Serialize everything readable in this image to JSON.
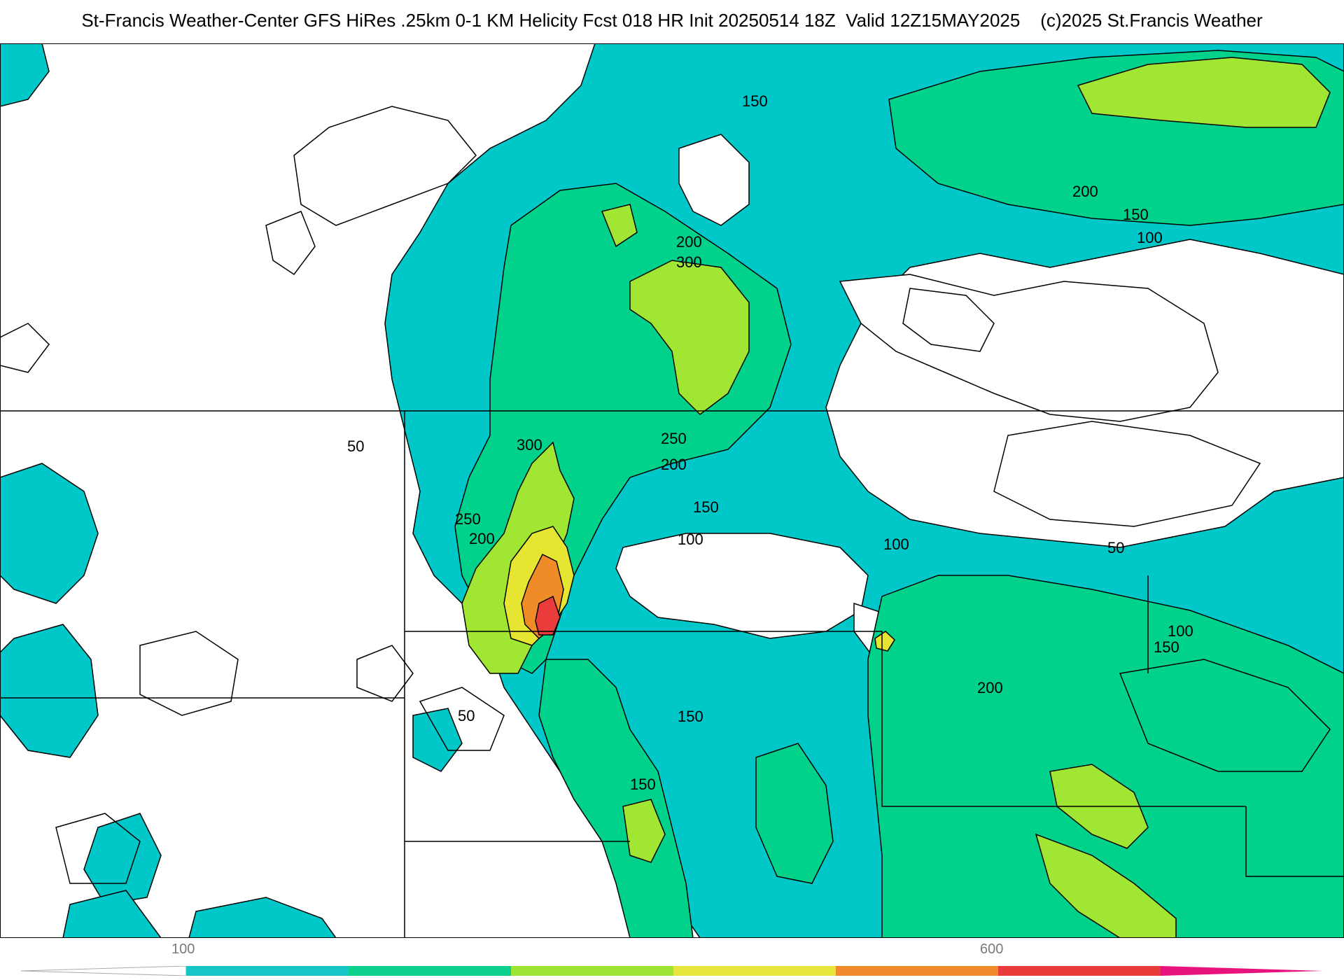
{
  "header": {
    "title": "St-Francis Weather-Center GFS HiRes .25km 0-1 KM Helicity Fcst 018 HR Init 20250514 18Z  Valid 12Z15MAY2025    (c)2025 St.Francis Weather"
  },
  "contour_labels": {
    "l150_top": "150",
    "l200_ne": "200",
    "l150_ne": "150",
    "l100_ne": "100",
    "l200_a": "200",
    "l300_a": "300",
    "l50_w": "50",
    "l250_a": "250",
    "l300_b": "300",
    "l200_b": "200",
    "l150_c": "150",
    "l100_c": "100",
    "l250_b": "250",
    "l200_c": "200",
    "l100_e": "100",
    "l50_e": "50",
    "l100_se": "100",
    "l150_se": "150",
    "l200_se": "200",
    "l50_sw": "50",
    "l150_s1": "150",
    "l150_s2": "150"
  },
  "colorbar": {
    "tick_left": "100",
    "tick_right": "600",
    "colors": [
      "#17c5c7",
      "#0dd08d",
      "#9ee533",
      "#e5e53b",
      "#f08a2d",
      "#ea3b3b",
      "#e8137d"
    ]
  },
  "legend_colors": {
    "helicity_100_150": "#00c8c8",
    "helicity_150_250": "#00d28c",
    "helicity_250_350": "#a0e632",
    "helicity_350_450": "#e6e632",
    "helicity_450_550": "#f08c28",
    "helicity_550_650": "#eb3c3c"
  }
}
